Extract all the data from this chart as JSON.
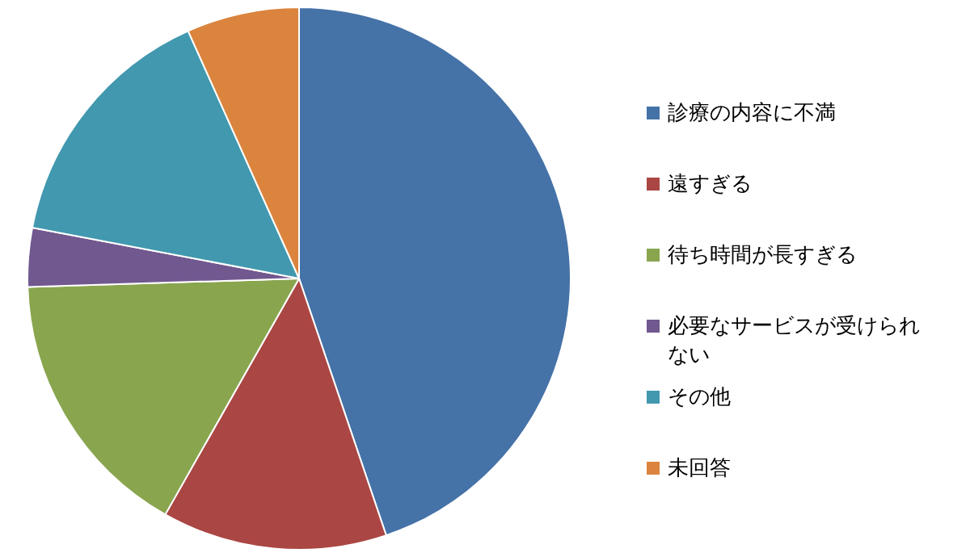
{
  "chart_data": {
    "type": "pie",
    "categories": [
      "診療の内容に不満",
      "遠すぎる",
      "待ち時間が長すぎる",
      "必要なサービスが受けられない",
      "その他",
      "未回答"
    ],
    "values": [
      44.8,
      13.4,
      16.3,
      3.5,
      15.3,
      6.7
    ],
    "colors": [
      "#4572a7",
      "#aa4643",
      "#89a54e",
      "#71588f",
      "#4198af",
      "#db843d"
    ],
    "legend": "right"
  }
}
